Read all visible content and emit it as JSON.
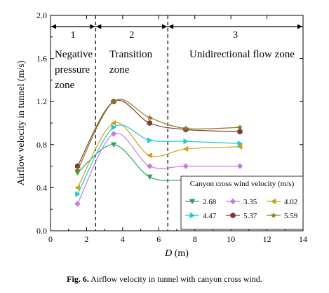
{
  "chart_data": {
    "type": "line",
    "xlabel_italic": "D",
    "xlabel_unit": " (m)",
    "ylabel": "Airflow velocity in tunnel (m/s)",
    "xlim": [
      0,
      14
    ],
    "ylim": [
      0.0,
      2.0
    ],
    "xticks": [
      0,
      2,
      4,
      6,
      8,
      10,
      12,
      14
    ],
    "yticks": [
      "0.0",
      "0.4",
      "0.8",
      "1.2",
      "1.6",
      "2.0"
    ],
    "zone_boundaries": [
      2.5,
      6.5
    ],
    "zones": [
      {
        "number": "1",
        "label_lines": [
          "Negative",
          "pressure",
          "zone"
        ]
      },
      {
        "number": "2",
        "label_lines": [
          "Transition",
          "zone"
        ]
      },
      {
        "number": "3",
        "label_lines": [
          "Unidirectional flow zone"
        ]
      }
    ],
    "legend_title": "Canyon cross wind velocity (m/s)",
    "legend_position": "bottom-right",
    "x": [
      1.5,
      3.5,
      5.5,
      7.5,
      10.5
    ],
    "series": [
      {
        "name": "2.68",
        "color": "#2ca25f",
        "marker": "triangle-down",
        "values": [
          0.54,
          0.8,
          0.5,
          0.47,
          0.46
        ]
      },
      {
        "name": "3.35",
        "color": "#c77ae0",
        "marker": "diamond",
        "values": [
          0.25,
          0.9,
          0.6,
          0.6,
          0.6
        ]
      },
      {
        "name": "4.02",
        "color": "#d4a017",
        "marker": "triangle-left",
        "values": [
          0.4,
          1.0,
          0.7,
          0.76,
          0.78
        ]
      },
      {
        "name": "4.47",
        "color": "#1ec8d8",
        "marker": "triangle-right",
        "values": [
          0.34,
          0.96,
          0.84,
          0.83,
          0.81
        ]
      },
      {
        "name": "5.37",
        "color": "#7a3e36",
        "marker": "hexagon",
        "values": [
          0.6,
          1.2,
          1.0,
          0.94,
          0.92
        ]
      },
      {
        "name": "5.59",
        "color": "#8a7a1f",
        "marker": "star",
        "values": [
          0.56,
          1.2,
          1.05,
          0.95,
          0.96
        ]
      }
    ]
  },
  "caption": {
    "label": "Fig. 6.",
    "text": " Airflow velocity in tunnel with canyon cross wind."
  }
}
